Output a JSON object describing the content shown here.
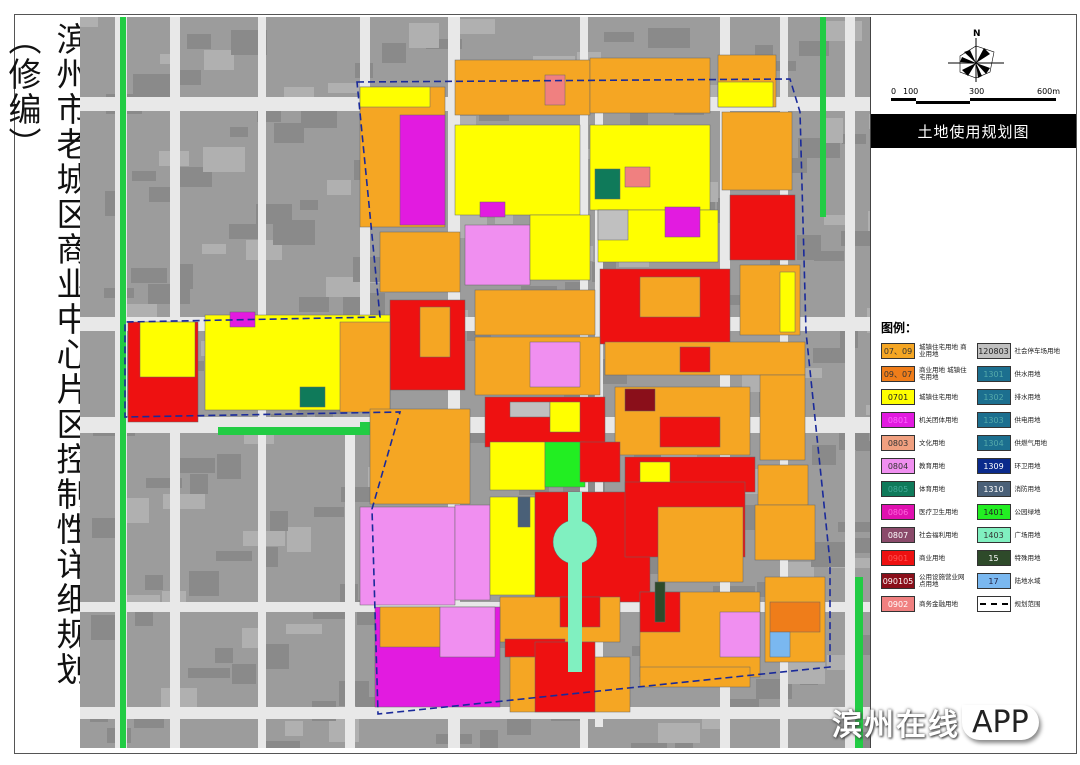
{
  "title": "滨州市老城区商业中心片区控制性详细规划（修编）",
  "panel": {
    "north_label": "N",
    "scale_labels": [
      "0",
      "100",
      "300",
      "600m"
    ],
    "sheet_title": "土地使用规划图"
  },
  "legend": {
    "heading": "图例：",
    "items": [
      {
        "code": "07、09",
        "label": "城镇住宅用地 商业用地",
        "color": "#f5a623",
        "text_color": "#333"
      },
      {
        "code": "120803",
        "label": "社会停车场用地",
        "color": "#c0c0c0",
        "text_color": "#222"
      },
      {
        "code": "09、07",
        "label": "商业用地 城镇住宅用地",
        "color": "#ef7d1a",
        "text_color": "#333"
      },
      {
        "code": "1301",
        "label": "供水用地",
        "color": "#1c6f8f",
        "text_color": "#5aa"
      },
      {
        "code": "0701",
        "label": "城镇住宅用地",
        "color": "#ffff00",
        "text_color": "#222"
      },
      {
        "code": "1302",
        "label": "排水用地",
        "color": "#1c6f8f",
        "text_color": "#5aa"
      },
      {
        "code": "0801",
        "label": "机关团体用地",
        "color": "#e21be0",
        "text_color": "#f6f"
      },
      {
        "code": "1303",
        "label": "供电用地",
        "color": "#1c6f8f",
        "text_color": "#5aa"
      },
      {
        "code": "0803",
        "label": "文化用地",
        "color": "#f0a080",
        "text_color": "#333"
      },
      {
        "code": "1304",
        "label": "供燃气用地",
        "color": "#1c6f8f",
        "text_color": "#5aa"
      },
      {
        "code": "0804",
        "label": "教育用地",
        "color": "#f08ff0",
        "text_color": "#333"
      },
      {
        "code": "1309",
        "label": "环卫用地",
        "color": "#0a2a8c",
        "text_color": "#fff"
      },
      {
        "code": "0805",
        "label": "体育用地",
        "color": "#0f7a5a",
        "text_color": "#4a9"
      },
      {
        "code": "1310",
        "label": "消防用地",
        "color": "#4a6078",
        "text_color": "#fff"
      },
      {
        "code": "0806",
        "label": "医疗卫生用地",
        "color": "#e010b0",
        "text_color": "#f6d"
      },
      {
        "code": "1401",
        "label": "公园绿地",
        "color": "#22ee22",
        "text_color": "#222"
      },
      {
        "code": "0807",
        "label": "社会福利用地",
        "color": "#8a4a6a",
        "text_color": "#fff"
      },
      {
        "code": "1403",
        "label": "广场用地",
        "color": "#80f0c0",
        "text_color": "#333"
      },
      {
        "code": "0901",
        "label": "商业用地",
        "color": "#ee1111",
        "text_color": "#f55"
      },
      {
        "code": "15",
        "label": "特殊用地",
        "color": "#2e4a2a",
        "text_color": "#fff"
      },
      {
        "code": "090105",
        "label": "公用设施营业网点用地",
        "color": "#8a0f1a",
        "text_color": "#fff"
      },
      {
        "code": "17",
        "label": "陆地水域",
        "color": "#7ab8f0",
        "text_color": "#224"
      },
      {
        "code": "0902",
        "label": "商务金融用地",
        "color": "#f08080",
        "text_color": "#fff"
      },
      {
        "code": "",
        "label": "规划范围",
        "color": "#ffffff",
        "text_color": "#000",
        "dashed": true
      }
    ]
  },
  "watermark": {
    "cn": "滨州在线",
    "app": "APP"
  }
}
